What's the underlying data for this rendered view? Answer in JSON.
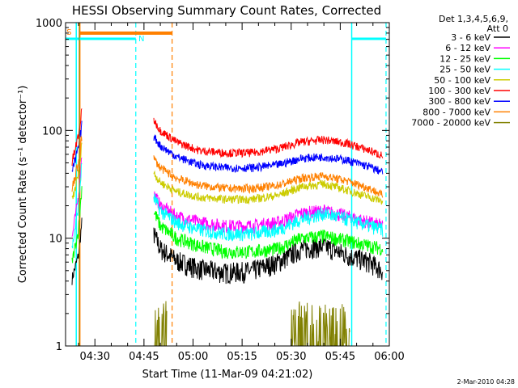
{
  "chart_data": {
    "type": "line",
    "title": "HESSI Observing Summary Count Rates, Corrected",
    "xlabel": "Start Time (11-Mar-09 04:21:02)",
    "ylabel": "Corrected Count Rate (s⁻¹ detector⁻¹)",
    "yscale": "log",
    "ylim": [
      1,
      1000
    ],
    "xlim_minutes_after_0400": [
      21.03,
      120
    ],
    "x_ticks": [
      "04:30",
      "04:45",
      "05:00",
      "05:15",
      "05:30",
      "05:45",
      "06:00"
    ],
    "y_ticks": [
      "1",
      "10",
      "100",
      "1000"
    ],
    "legend_header": [
      "Det 1,3,4,5,6,9,",
      "Att 0"
    ],
    "legend_position": "outside-right",
    "footer": "2-Mar-2010 04:28",
    "flags": [
      {
        "label": "S",
        "color": "#ff8000"
      },
      {
        "label": "N",
        "color": "#00ffff"
      }
    ],
    "series": [
      {
        "name": "3 - 6 keV",
        "color": "#000000",
        "x": [
          23,
          25,
          26,
          48,
          50,
          55,
          62,
          70,
          78,
          86,
          93,
          100,
          107,
          114,
          118
        ],
        "y": [
          4.2,
          7,
          14,
          11,
          8,
          6.2,
          5.2,
          4.8,
          5,
          6,
          8,
          8.5,
          7,
          6,
          5
        ]
      },
      {
        "name": "6 - 12 keV",
        "color": "#ff00ff",
        "x": [
          23,
          25,
          26,
          48,
          50,
          55,
          62,
          70,
          78,
          86,
          93,
          100,
          107,
          114,
          118
        ],
        "y": [
          10,
          25,
          60,
          26,
          20,
          16,
          14,
          13,
          13,
          14,
          17,
          18,
          16,
          14,
          13
        ]
      },
      {
        "name": "12 - 25 keV",
        "color": "#00ff00",
        "x": [
          23,
          25,
          26,
          48,
          50,
          55,
          62,
          70,
          78,
          86,
          93,
          100,
          107,
          114,
          118
        ],
        "y": [
          6,
          12,
          30,
          18,
          13,
          10,
          8.5,
          7.5,
          7.5,
          8,
          10,
          10.5,
          9.5,
          8.5,
          8
        ]
      },
      {
        "name": "25 - 50 keV",
        "color": "#00ffff",
        "x": [
          23,
          25,
          26,
          48,
          50,
          55,
          62,
          70,
          78,
          86,
          93,
          100,
          107,
          114,
          118
        ],
        "y": [
          8,
          20,
          50,
          24,
          18,
          14,
          12,
          11,
          11,
          12,
          15,
          17,
          15,
          13,
          12
        ]
      },
      {
        "name": "50 - 100 keV",
        "color": "#cccc00",
        "x": [
          23,
          25,
          26,
          48,
          50,
          55,
          62,
          70,
          78,
          86,
          93,
          100,
          107,
          114,
          118
        ],
        "y": [
          22,
          40,
          80,
          40,
          33,
          27,
          24,
          23,
          23,
          25,
          30,
          32,
          28,
          24,
          22
        ]
      },
      {
        "name": "100 - 300 keV",
        "color": "#ff0000",
        "x": [
          23,
          25,
          26,
          48,
          50,
          55,
          62,
          70,
          78,
          86,
          93,
          100,
          107,
          114,
          118
        ],
        "y": [
          50,
          90,
          150,
          125,
          100,
          78,
          65,
          62,
          62,
          68,
          78,
          82,
          76,
          65,
          58
        ]
      },
      {
        "name": "300 - 800 keV",
        "color": "#0000ff",
        "x": [
          23,
          25,
          26,
          48,
          50,
          55,
          62,
          70,
          78,
          86,
          93,
          100,
          107,
          114,
          118
        ],
        "y": [
          40,
          70,
          110,
          88,
          72,
          57,
          48,
          45,
          45,
          48,
          55,
          57,
          53,
          46,
          41
        ]
      },
      {
        "name": "800 - 7000 keV",
        "color": "#ff8000",
        "x": [
          23,
          25,
          26,
          48,
          50,
          55,
          62,
          70,
          78,
          86,
          93,
          100,
          107,
          114,
          118
        ],
        "y": [
          28,
          50,
          90,
          55,
          45,
          36,
          31,
          29,
          29,
          31,
          36,
          38,
          34,
          29,
          25
        ]
      },
      {
        "name": "7000 - 20000 keV",
        "color": "#808000",
        "x": [
          23,
          24,
          25,
          26,
          48,
          49,
          50,
          51,
          90,
          92,
          95,
          98,
          100,
          102,
          105,
          108
        ],
        "y": [
          1,
          1,
          1,
          1,
          2.8,
          2,
          2.7,
          1.6,
          2.5,
          1.5,
          2.4,
          1.6,
          2.6,
          1.5,
          2.3,
          1.6
        ]
      }
    ]
  }
}
